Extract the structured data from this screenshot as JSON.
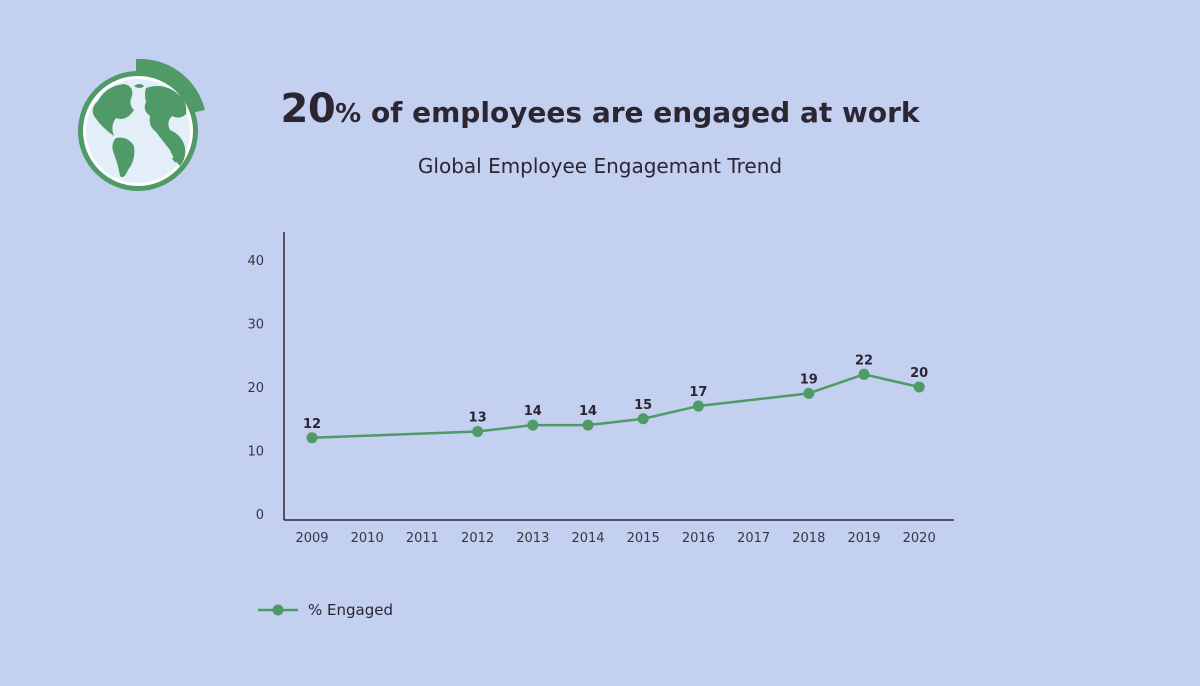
{
  "headline": {
    "big": "20",
    "pct": "%",
    "rest": " of employees are engaged at work"
  },
  "colors": {
    "background": "#c3d0ef",
    "series": "#4f9a67",
    "axis": "#2c2632"
  },
  "icons": {
    "globe": "globe-icon"
  },
  "chart_data": {
    "type": "line",
    "title": "Global Employee Engagemant Trend",
    "x": [
      "2009",
      "2010",
      "2011",
      "2012",
      "2013",
      "2014",
      "2015",
      "2016",
      "2017",
      "2018",
      "2019",
      "2020"
    ],
    "ylim": [
      0,
      45
    ],
    "yticks": [
      0,
      10,
      20,
      30,
      40
    ],
    "grid": false,
    "legend_position": "bottom-left",
    "series": [
      {
        "name": "% Engaged",
        "color": "#4f9a67",
        "points": [
          {
            "x": "2009",
            "y": 12,
            "label": "12"
          },
          {
            "x": "2012",
            "y": 13,
            "label": "13"
          },
          {
            "x": "2013",
            "y": 14,
            "label": "14"
          },
          {
            "x": "2014",
            "y": 14,
            "label": "14"
          },
          {
            "x": "2015",
            "y": 15,
            "label": "15"
          },
          {
            "x": "2016",
            "y": 17,
            "label": "17"
          },
          {
            "x": "2018",
            "y": 19,
            "label": "19"
          },
          {
            "x": "2019",
            "y": 22,
            "label": "22"
          },
          {
            "x": "2020",
            "y": 20,
            "label": "20"
          }
        ]
      }
    ]
  }
}
